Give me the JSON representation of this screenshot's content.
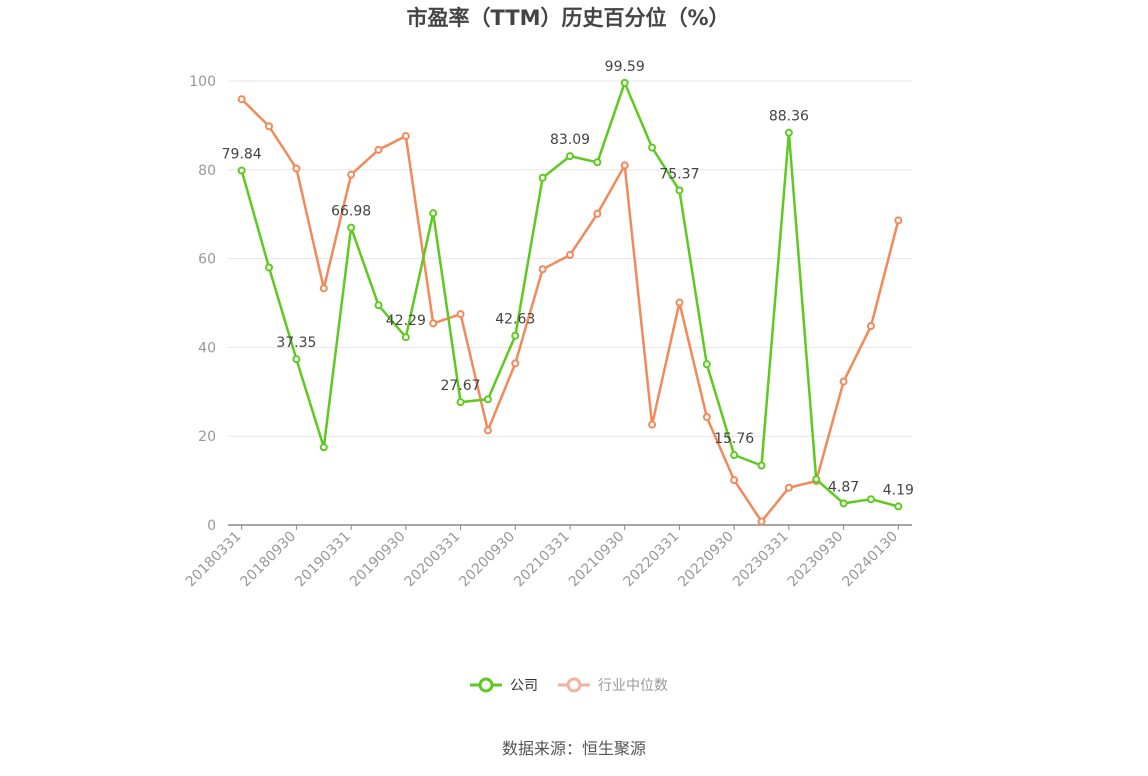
{
  "chart_data": {
    "type": "line",
    "title": "市盈率（TTM）历史百分位（%）",
    "ylim": [
      0,
      100
    ],
    "yticks": [
      0,
      20,
      40,
      60,
      80,
      100
    ],
    "grid": true,
    "legend_position": "bottom",
    "x": [
      "20180331",
      "20180630",
      "20180930",
      "20181231",
      "20190331",
      "20190630",
      "20190930",
      "20191231",
      "20200331",
      "20200630",
      "20200930",
      "20201231",
      "20210331",
      "20210630",
      "20210930",
      "20211231",
      "20220331",
      "20220630",
      "20220930",
      "20221231",
      "20230331",
      "20230630",
      "20230930",
      "20231231",
      "20240130"
    ],
    "xtick_labels": [
      "20180331",
      "20180930",
      "20190331",
      "20190930",
      "20200331",
      "20200930",
      "20210331",
      "20210930",
      "20220331",
      "20220930",
      "20230331",
      "20230930",
      "20240130"
    ],
    "series": [
      {
        "name": "公司",
        "color": "#5ec91f",
        "values": [
          79.84,
          58.0,
          37.35,
          17.5,
          66.98,
          49.5,
          42.29,
          70.2,
          27.67,
          28.3,
          42.63,
          78.2,
          83.09,
          81.7,
          99.59,
          85.0,
          75.37,
          36.2,
          15.76,
          13.4,
          88.36,
          10.3,
          4.87,
          5.8,
          4.19
        ]
      },
      {
        "name": "行业中位数",
        "color": "#f2895a",
        "values": [
          95.9,
          89.8,
          80.3,
          53.3,
          78.9,
          84.5,
          87.6,
          45.4,
          47.5,
          21.3,
          36.4,
          57.6,
          60.8,
          70.1,
          81.0,
          22.6,
          50.1,
          24.3,
          10.1,
          0.8,
          8.4,
          9.9,
          32.3,
          44.8,
          68.6
        ]
      }
    ],
    "data_labels": [
      {
        "series": 0,
        "index": 0,
        "text": "79.84"
      },
      {
        "series": 0,
        "index": 2,
        "text": "37.35"
      },
      {
        "series": 0,
        "index": 4,
        "text": "66.98"
      },
      {
        "series": 0,
        "index": 6,
        "text": "42.29"
      },
      {
        "series": 0,
        "index": 8,
        "text": "27.67"
      },
      {
        "series": 0,
        "index": 10,
        "text": "42.63"
      },
      {
        "series": 0,
        "index": 12,
        "text": "83.09"
      },
      {
        "series": 0,
        "index": 14,
        "text": "99.59"
      },
      {
        "series": 0,
        "index": 16,
        "text": "75.37"
      },
      {
        "series": 0,
        "index": 18,
        "text": "15.76"
      },
      {
        "series": 0,
        "index": 20,
        "text": "88.36"
      },
      {
        "series": 0,
        "index": 22,
        "text": "4.87"
      },
      {
        "series": 0,
        "index": 24,
        "text": "4.19"
      }
    ]
  },
  "legend": {
    "company": "公司",
    "industry": "行业中位数",
    "company_color": "#5ec91f",
    "industry_color": "#f2b39c",
    "industry_text_color": "#999999"
  },
  "source": "数据来源：恒生聚源"
}
